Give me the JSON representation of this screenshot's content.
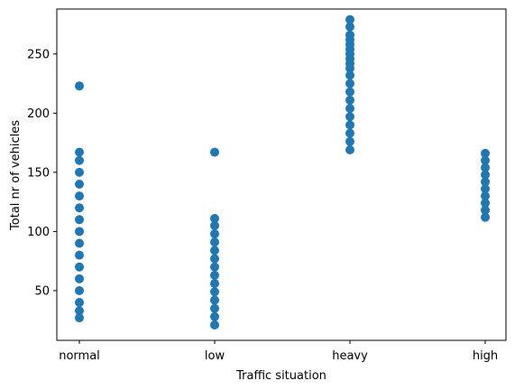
{
  "chart_data": {
    "type": "scatter",
    "title": "",
    "xlabel": "Traffic situation",
    "ylabel": "Total nr of vehicles",
    "categories": [
      "normal",
      "low",
      "heavy",
      "high"
    ],
    "ylim": [
      8,
      288
    ],
    "yticks": [
      50,
      100,
      150,
      200,
      250
    ],
    "grid": false,
    "marker_color": "#1f77b4",
    "series": [
      {
        "values": [
          {
            "x": "normal",
            "y": 223
          },
          {
            "x": "normal",
            "y": 167
          },
          {
            "x": "normal",
            "y": 160
          },
          {
            "x": "normal",
            "y": 150
          },
          {
            "x": "normal",
            "y": 140
          },
          {
            "x": "normal",
            "y": 130
          },
          {
            "x": "normal",
            "y": 120
          },
          {
            "x": "normal",
            "y": 110
          },
          {
            "x": "normal",
            "y": 100
          },
          {
            "x": "normal",
            "y": 90
          },
          {
            "x": "normal",
            "y": 80
          },
          {
            "x": "normal",
            "y": 70
          },
          {
            "x": "normal",
            "y": 60
          },
          {
            "x": "normal",
            "y": 50
          },
          {
            "x": "normal",
            "y": 40
          },
          {
            "x": "normal",
            "y": 33
          },
          {
            "x": "normal",
            "y": 27
          },
          {
            "x": "low",
            "y": 167
          },
          {
            "x": "low",
            "y": 111
          },
          {
            "x": "low",
            "y": 105
          },
          {
            "x": "low",
            "y": 98
          },
          {
            "x": "low",
            "y": 91
          },
          {
            "x": "low",
            "y": 84
          },
          {
            "x": "low",
            "y": 77
          },
          {
            "x": "low",
            "y": 70
          },
          {
            "x": "low",
            "y": 63
          },
          {
            "x": "low",
            "y": 56
          },
          {
            "x": "low",
            "y": 49
          },
          {
            "x": "low",
            "y": 42
          },
          {
            "x": "low",
            "y": 35
          },
          {
            "x": "low",
            "y": 28
          },
          {
            "x": "low",
            "y": 21
          },
          {
            "x": "heavy",
            "y": 279
          },
          {
            "x": "heavy",
            "y": 273
          },
          {
            "x": "heavy",
            "y": 266
          },
          {
            "x": "heavy",
            "y": 262
          },
          {
            "x": "heavy",
            "y": 258
          },
          {
            "x": "heavy",
            "y": 254
          },
          {
            "x": "heavy",
            "y": 250
          },
          {
            "x": "heavy",
            "y": 246
          },
          {
            "x": "heavy",
            "y": 242
          },
          {
            "x": "heavy",
            "y": 238
          },
          {
            "x": "heavy",
            "y": 232
          },
          {
            "x": "heavy",
            "y": 225
          },
          {
            "x": "heavy",
            "y": 218
          },
          {
            "x": "heavy",
            "y": 211
          },
          {
            "x": "heavy",
            "y": 204
          },
          {
            "x": "heavy",
            "y": 197
          },
          {
            "x": "heavy",
            "y": 190
          },
          {
            "x": "heavy",
            "y": 183
          },
          {
            "x": "heavy",
            "y": 176
          },
          {
            "x": "heavy",
            "y": 169
          },
          {
            "x": "high",
            "y": 166
          },
          {
            "x": "high",
            "y": 160
          },
          {
            "x": "high",
            "y": 154
          },
          {
            "x": "high",
            "y": 148
          },
          {
            "x": "high",
            "y": 142
          },
          {
            "x": "high",
            "y": 136
          },
          {
            "x": "high",
            "y": 130
          },
          {
            "x": "high",
            "y": 124
          },
          {
            "x": "high",
            "y": 118
          },
          {
            "x": "high",
            "y": 112
          }
        ]
      }
    ]
  }
}
